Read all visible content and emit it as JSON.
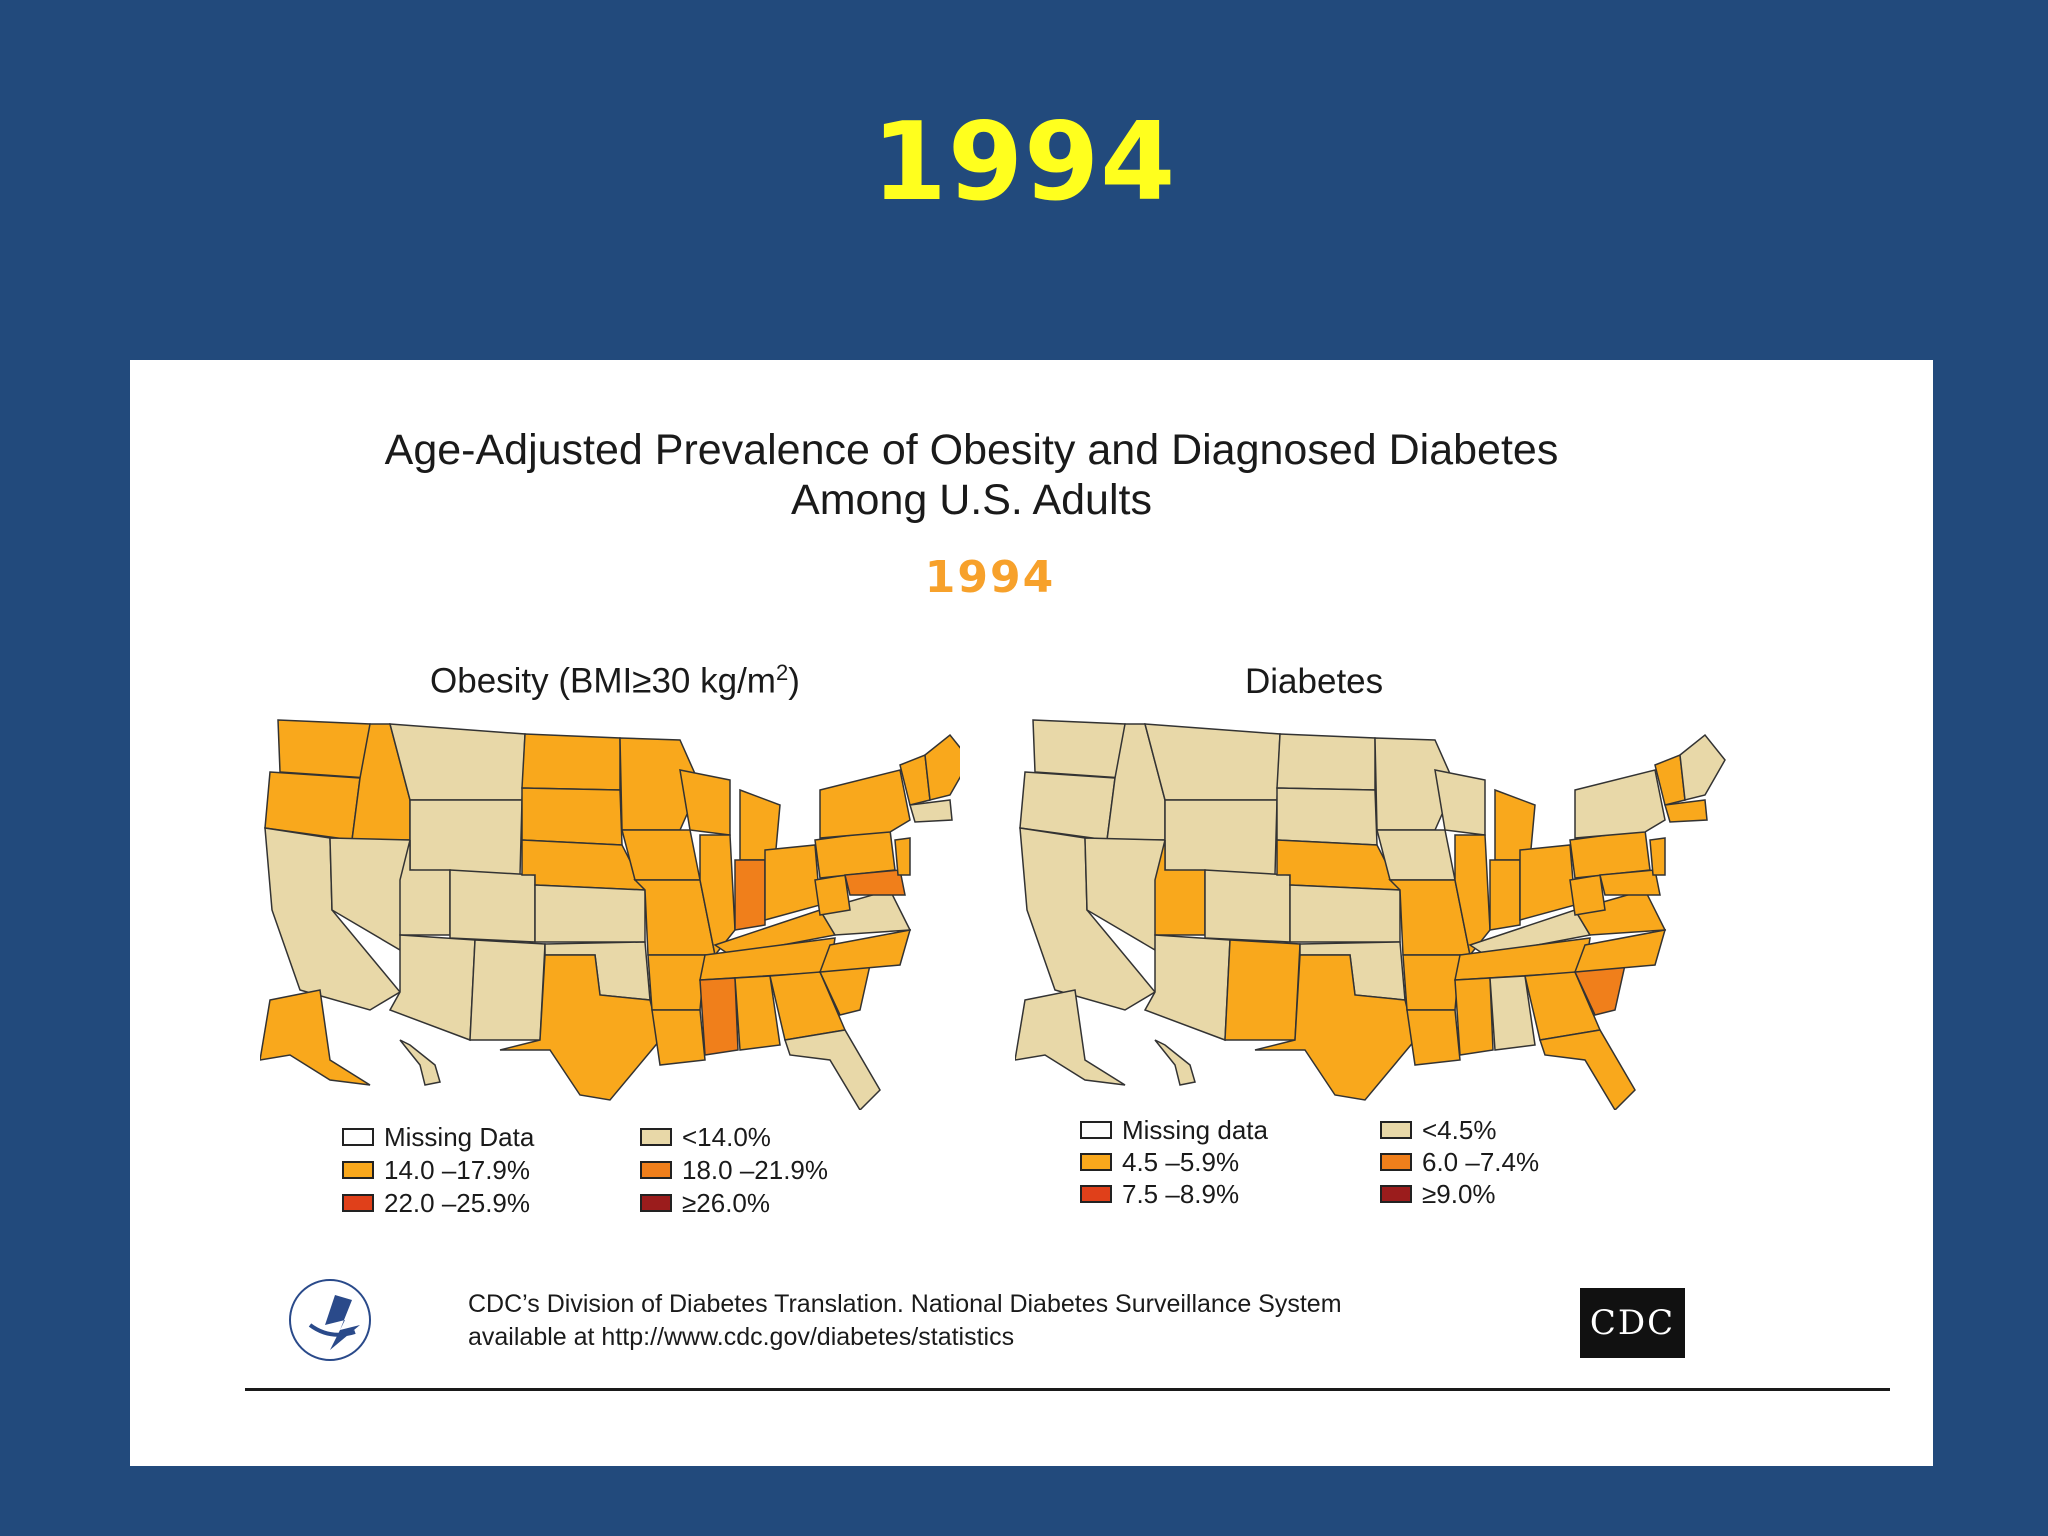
{
  "slide": {
    "title": "1994"
  },
  "figure": {
    "title_line1": "Age-Adjusted Prevalence of Obesity and Diagnosed Diabetes",
    "title_line2": "Among U.S. Adults",
    "year": "1994"
  },
  "obesity_map": {
    "title": "Obesity (BMI≥30 kg/m",
    "title_sup": "2",
    "title_close": ")",
    "legend": [
      {
        "label": "Missing Data",
        "color": "#ffffff"
      },
      {
        "label": "<14.0%",
        "color": "#e8d8a8"
      },
      {
        "label": "14.0 –17.9%",
        "color": "#f9a81c"
      },
      {
        "label": "18.0 –21.9%",
        "color": "#f07f1b"
      },
      {
        "label": "22.0 –25.9%",
        "color": "#e0401a"
      },
      {
        "label": "≥26.0%",
        "color": "#9b1c1c"
      }
    ]
  },
  "diabetes_map": {
    "title": "Diabetes",
    "legend": [
      {
        "label": "Missing data",
        "color": "#ffffff"
      },
      {
        "label": "<4.5%",
        "color": "#e8d8a8"
      },
      {
        "label": "4.5 –5.9%",
        "color": "#f9a81c"
      },
      {
        "label": "6.0 –7.4%",
        "color": "#f07f1b"
      },
      {
        "label": "7.5 –8.9%",
        "color": "#e0401a"
      },
      {
        "label": "≥9.0%",
        "color": "#9b1c1c"
      }
    ]
  },
  "footer": {
    "line1": "CDC’s Division of Diabetes Translation. National Diabetes Surveillance System",
    "line2": "available at http://www.cdc.gov/diabetes/statistics",
    "logo_text": "CDC"
  },
  "colors": {
    "background": "#224a7c",
    "title_yellow": "#ffff1e",
    "year_orange": "#f7a12b",
    "low": "#e8d8a8",
    "mid": "#f9a81c",
    "high": "#f07f1b"
  }
}
